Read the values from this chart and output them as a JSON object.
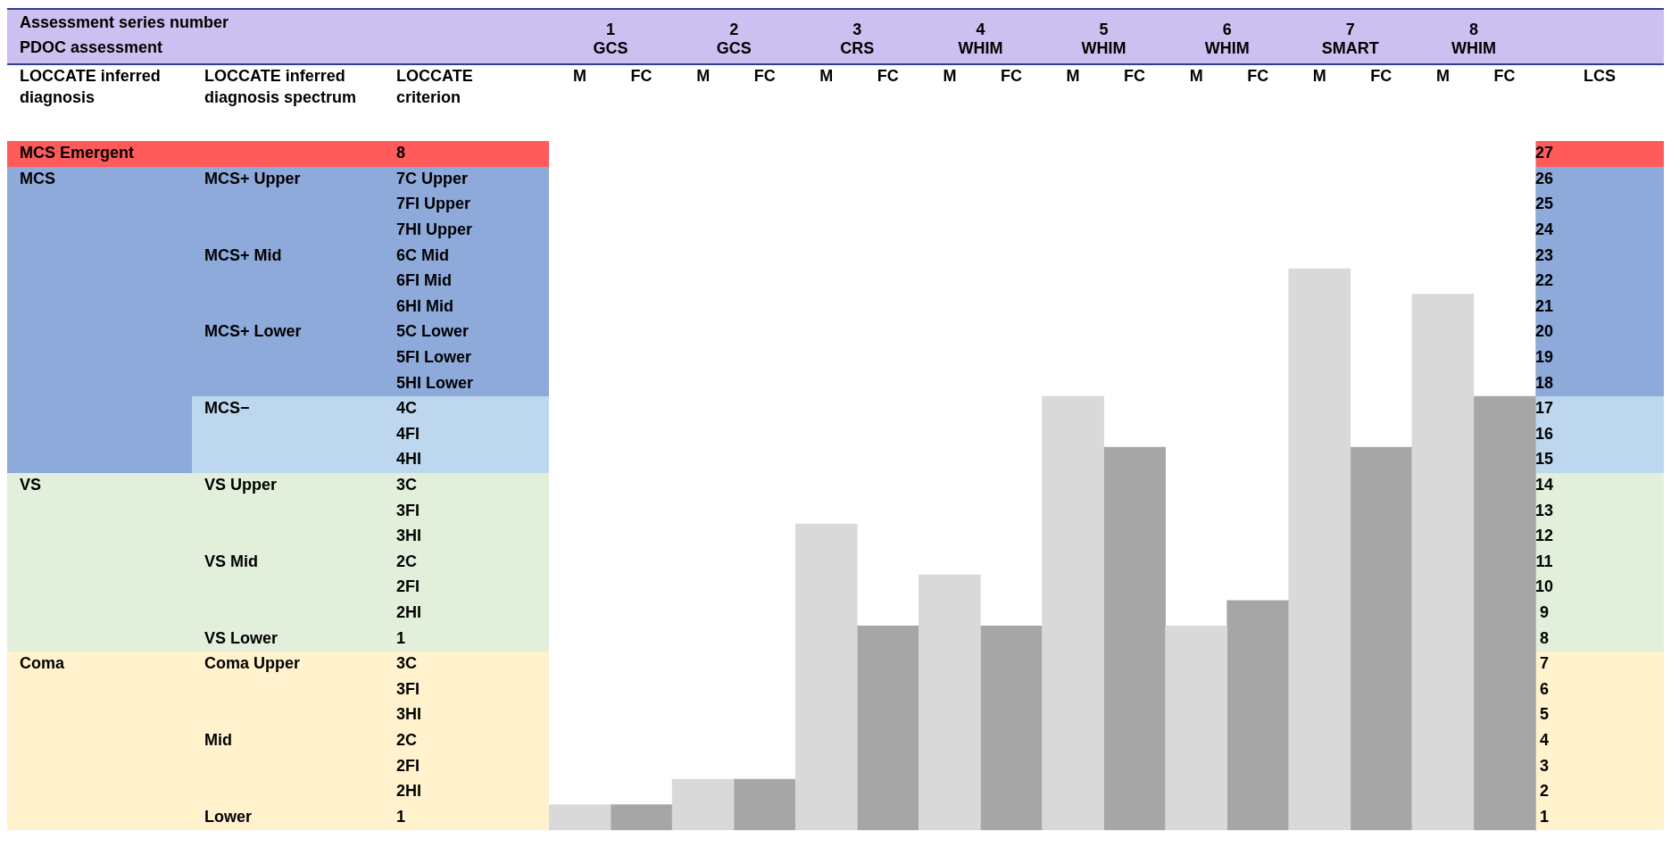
{
  "chart_data": {
    "type": "bar",
    "categories": [
      "1\nGCS",
      "2\nGCS",
      "3\nCRS",
      "4\nWHIM",
      "5\nWHIM",
      "6\nWHIM",
      "7\nSMART",
      "8\nWHIM"
    ],
    "series": [
      {
        "name": "M",
        "color": "#d9d9d9",
        "base": [
          0.5,
          0.5,
          0.5,
          0.5,
          0.5,
          0.5,
          0.5,
          0.5
        ],
        "values": [
          1,
          2,
          12,
          10,
          17,
          8,
          22,
          21
        ]
      },
      {
        "name": "FC",
        "color": "#a6a6a6",
        "base": [
          0.5,
          0.5,
          0.5,
          0.5,
          0.5,
          0.5,
          0.5,
          0.5
        ],
        "values": [
          1,
          2,
          8,
          8,
          15,
          9,
          15,
          17
        ]
      }
    ],
    "ylabel": "LCS",
    "ylim": [
      0.5,
      27.5
    ],
    "yticks": [
      1,
      2,
      3,
      4,
      5,
      6,
      7,
      8,
      9,
      10,
      11,
      12,
      13,
      14,
      15,
      16,
      17,
      18,
      19,
      20,
      21,
      22,
      23,
      24,
      25,
      26,
      27
    ],
    "annotations": [
      "Assessment series number",
      "PDOC assessment",
      "LOCCATE inferred diagnosis",
      "LOCCATE inferred diagnosis spectrum",
      "LOCCATE criterion",
      "MCS Emergent",
      "MCS",
      "VS",
      "Coma",
      "MCS+ Upper",
      "MCS+ Mid",
      "MCS+ Lower",
      "MCS−",
      "VS Upper",
      "VS Mid",
      "VS Lower",
      "Coma Upper",
      "Mid",
      "Lower",
      "8",
      "7C Upper",
      "7FI Upper",
      "7HI Upper",
      "6C Mid",
      "6FI Mid",
      "6HI Mid",
      "5C Lower",
      "5FI Lower",
      "5HI Lower",
      "4C",
      "4FI",
      "4HI",
      "3C",
      "3FI",
      "3HI",
      "2C",
      "2FI",
      "2HI",
      "1",
      "3C",
      "3FI",
      "3HI",
      "2C",
      "2FI",
      "2HI",
      "1"
    ],
    "grid": false,
    "legend": false
  }
}
